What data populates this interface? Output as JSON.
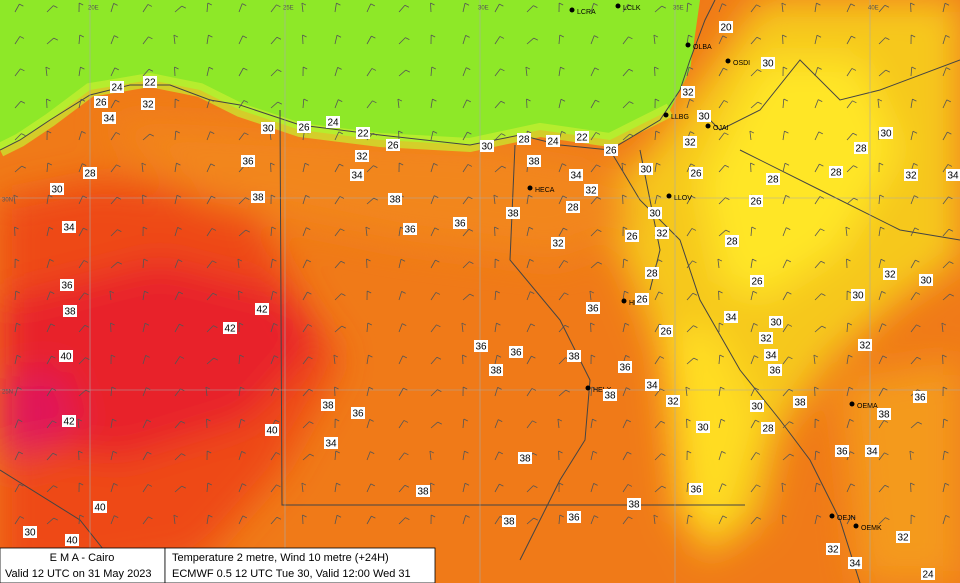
{
  "map": {
    "footer": {
      "left": [
        "E M A  -  Cairo",
        "Valid 12 UTC on 31 May 2023"
      ],
      "right": [
        "Temperature  2 metre, Wind  10 metre (+24H)",
        "ECMWF 0.5 12 UTC Tue 30, Valid 12:00 Wed 31"
      ]
    },
    "grid_labels": [
      "20E",
      "25E",
      "30E",
      "35E",
      "40E",
      "30N",
      "25N"
    ],
    "stations": [
      "LCRA",
      "LCLK",
      "OLBA",
      "OSDI",
      "LLBG",
      "OJAI",
      "HECA",
      "LLOV",
      "HEGN",
      "HELX",
      "OEMA",
      "OEJN",
      "OEMK"
    ],
    "temperatures": [
      22,
      24,
      26,
      32,
      34,
      30,
      26,
      24,
      22,
      26,
      30,
      28,
      24,
      22,
      26,
      36,
      32,
      38,
      30,
      28,
      34,
      34,
      32,
      30,
      26,
      38,
      38,
      38,
      28,
      30,
      34,
      36,
      36,
      32,
      26,
      32,
      28,
      28,
      36,
      38,
      42,
      42,
      36,
      26,
      26,
      34,
      30,
      40,
      36,
      36,
      38,
      36,
      34,
      38,
      38,
      36,
      38,
      32,
      40,
      42,
      34,
      38,
      30,
      36,
      40,
      30,
      40,
      38,
      38,
      38,
      36,
      20,
      32,
      30,
      30,
      32,
      30,
      28,
      32,
      34,
      28,
      28,
      26,
      26,
      32,
      30,
      30,
      32,
      34,
      36,
      32,
      30,
      38,
      28,
      38,
      36,
      36,
      34,
      32,
      32,
      34,
      24
    ]
  }
}
